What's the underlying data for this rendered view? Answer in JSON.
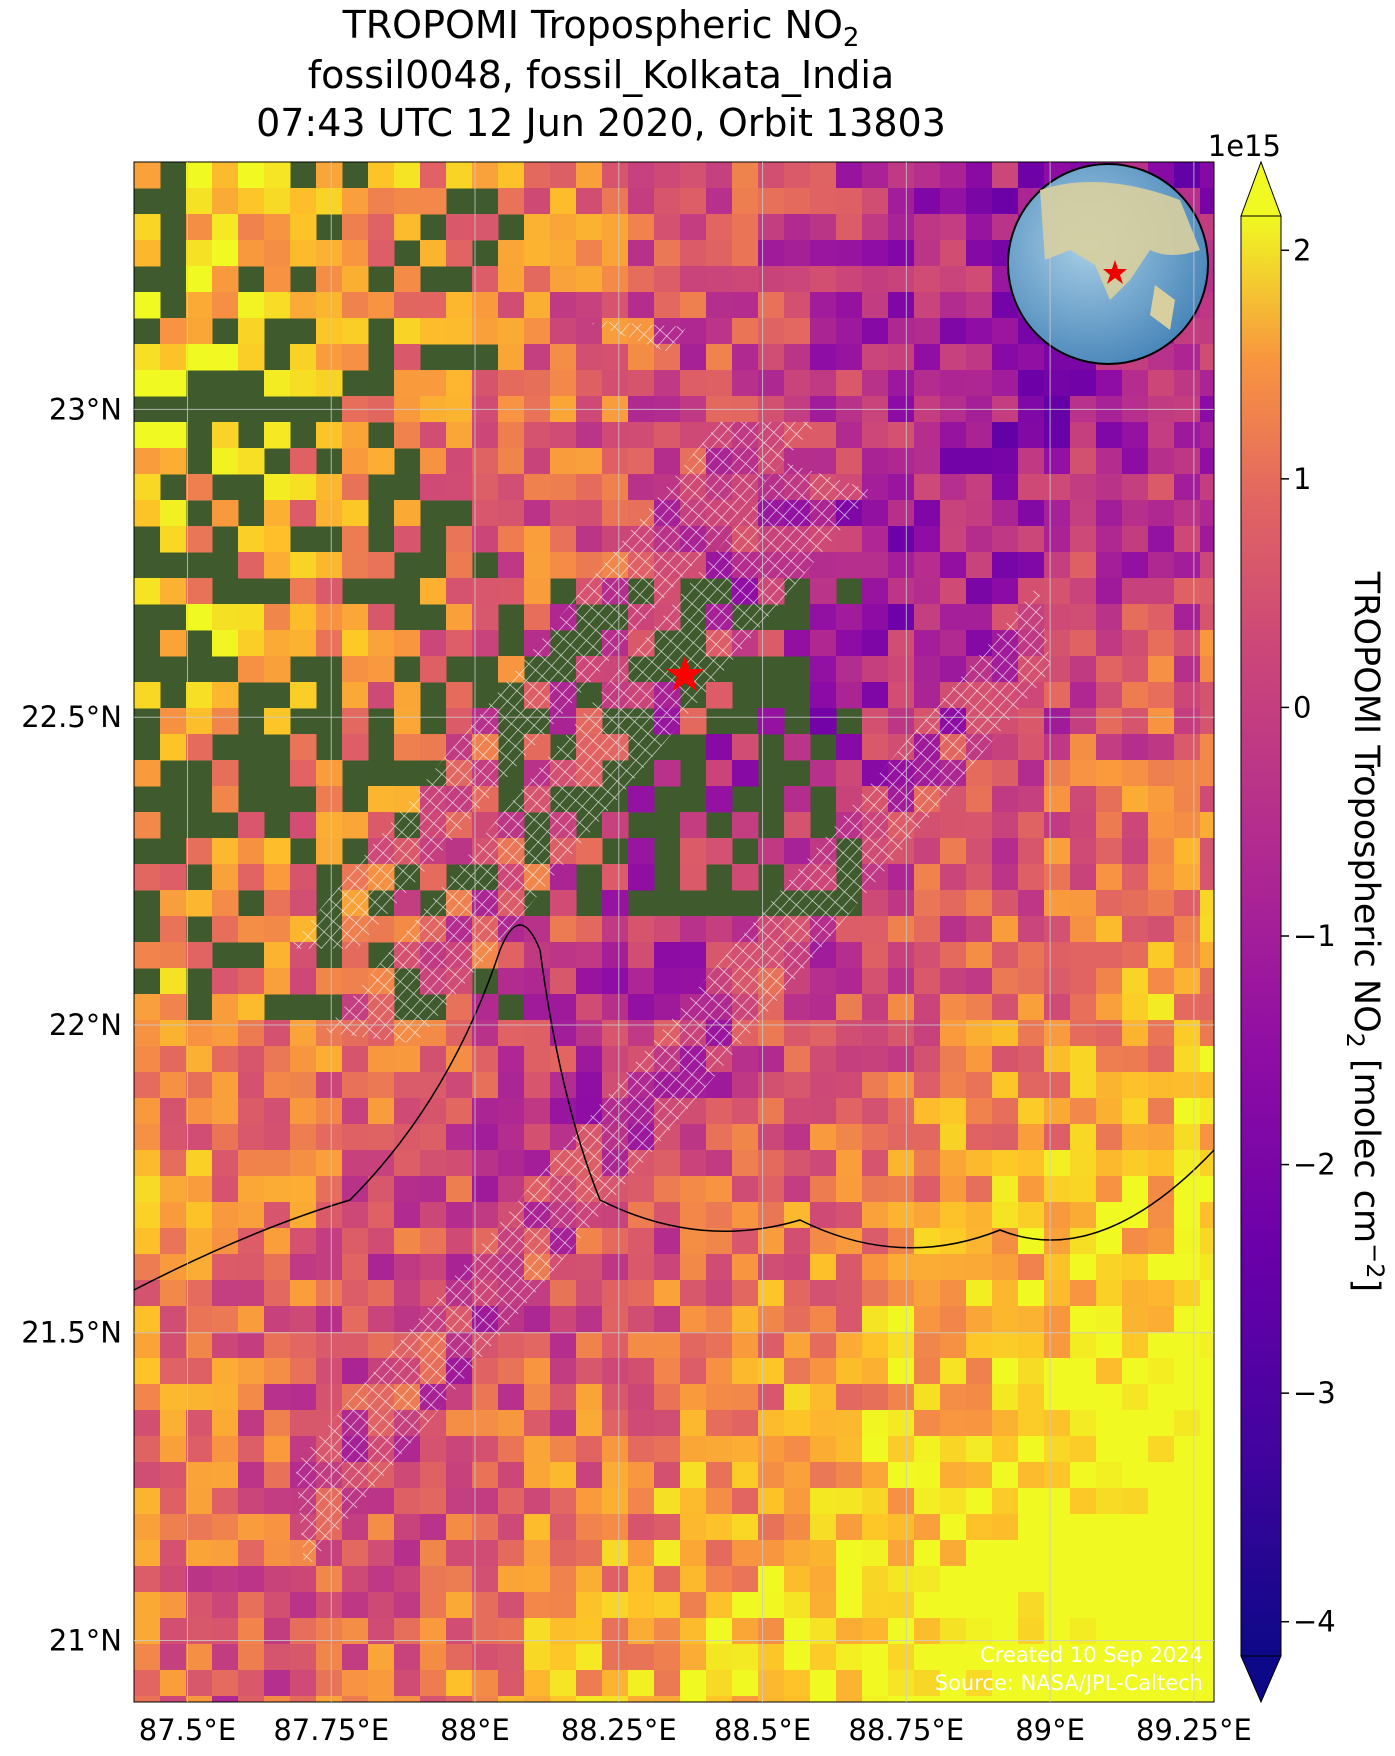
{
  "chart_data": {
    "type": "map",
    "title": [
      [
        "TROPOMI Tropospheric NO",
        "2"
      ],
      [
        "fossil0048, fossil_Kolkata_India"
      ],
      [
        "07:43 UTC 12 Jun 2020, Orbit 13803"
      ]
    ],
    "xlim": [
      87.407,
      89.285
    ],
    "ylim": [
      20.9,
      23.402
    ],
    "xticks": [
      {
        "value": 87.5,
        "label": "87.5°E"
      },
      {
        "value": 87.75,
        "label": "87.75°E"
      },
      {
        "value": 88,
        "label": "88°E"
      },
      {
        "value": 88.25,
        "label": "88.25°E"
      },
      {
        "value": 88.5,
        "label": "88.5°E"
      },
      {
        "value": 88.75,
        "label": "88.75°E"
      },
      {
        "value": 89,
        "label": "89°E"
      },
      {
        "value": 89.25,
        "label": "89.25°E"
      }
    ],
    "yticks": [
      {
        "value": 21,
        "label": "21°N"
      },
      {
        "value": 21.5,
        "label": "21.5°N"
      },
      {
        "value": 22,
        "label": "22°N"
      },
      {
        "value": 22.5,
        "label": "22.5°N"
      },
      {
        "value": 23,
        "label": "23°N"
      }
    ],
    "grid": true,
    "colorbar": {
      "clim": [
        -4.15,
        2.15
      ],
      "offset_label": "1e15",
      "ticks": [
        {
          "value": -4,
          "label": "−4"
        },
        {
          "value": -3,
          "label": "−3"
        },
        {
          "value": -2,
          "label": "−2"
        },
        {
          "value": -1,
          "label": "−1"
        },
        0,
        1,
        2
      ],
      "label": [
        "TROPOMI Tropospheric NO",
        "2",
        " [molec cm",
        "−2",
        "]"
      ]
    },
    "annotations": [
      "Created 10 Sep 2024",
      "Source: NASA/JPL-Caltech"
    ]
  }
}
